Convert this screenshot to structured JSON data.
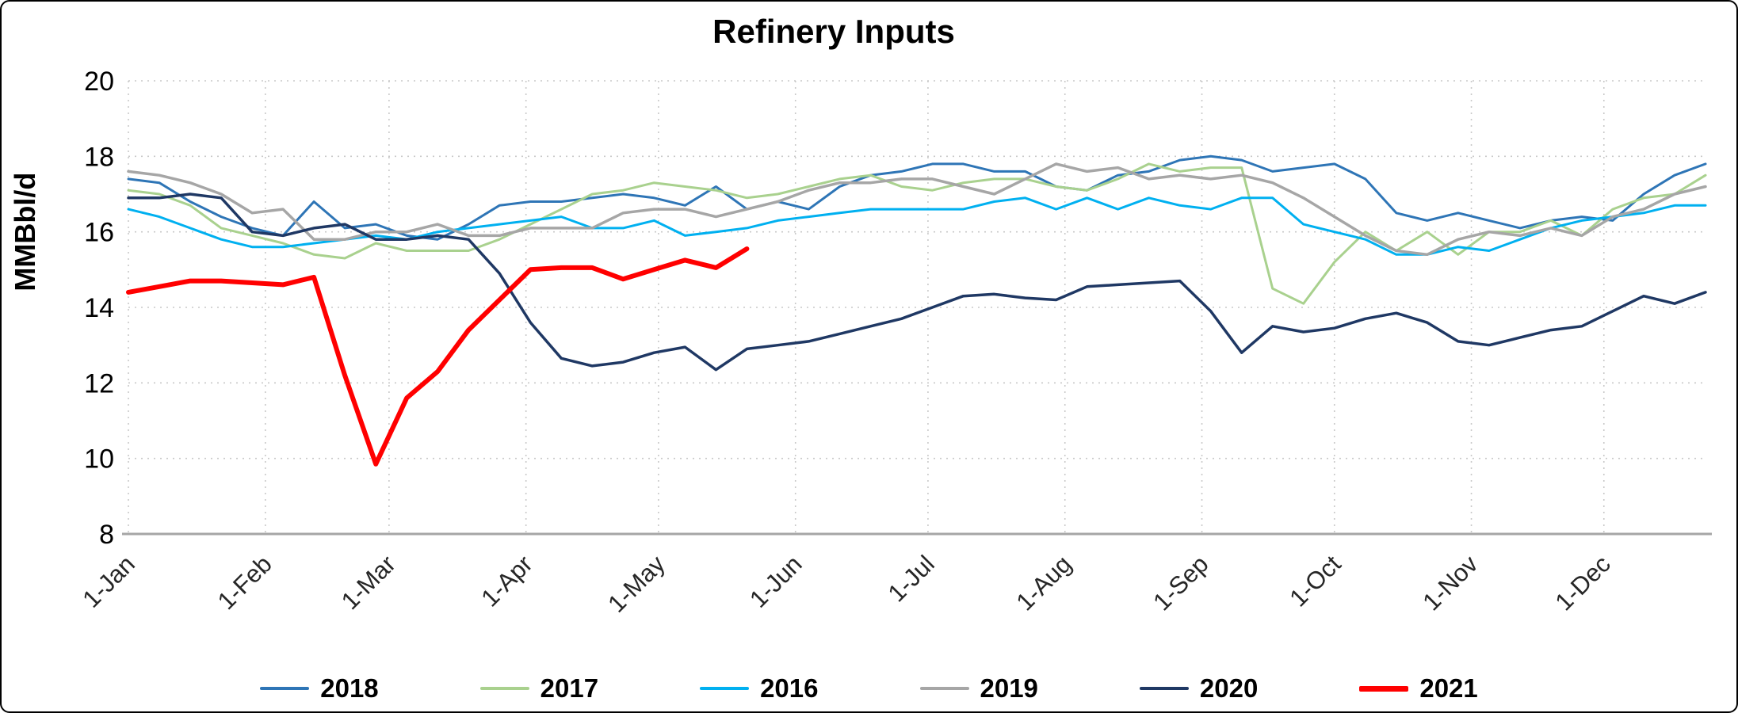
{
  "chart_data": {
    "type": "line",
    "title": "Refinery Inputs",
    "xlabel": "",
    "ylabel": "MMBbl/d",
    "ylim": [
      8,
      20
    ],
    "y_ticks": [
      20,
      18,
      16,
      14,
      12,
      10,
      8
    ],
    "x_tick_labels": [
      "1-Jan",
      "1-Feb",
      "1-Mar",
      "1-Apr",
      "1-May",
      "1-Jun",
      "1-Jul",
      "1-Aug",
      "1-Sep",
      "1-Oct",
      "1-Nov",
      "1-Dec"
    ],
    "x_tick_days": [
      0,
      31,
      59,
      90,
      120,
      151,
      181,
      212,
      243,
      273,
      304,
      334
    ],
    "days_span": 357,
    "grid": "dotted horizontal and vertical gridlines",
    "legend_position": "bottom",
    "axis_color": "#a6a6a6",
    "grid_color": "#c9c9c9",
    "series": [
      {
        "name": "2018",
        "color": "#2E75B6",
        "width": 3,
        "values": [
          17.4,
          17.3,
          16.8,
          16.4,
          16.1,
          15.9,
          16.8,
          16.1,
          16.2,
          15.9,
          15.8,
          16.2,
          16.7,
          16.8,
          16.8,
          16.9,
          17.0,
          16.9,
          16.7,
          17.2,
          16.6,
          16.8,
          16.6,
          17.2,
          17.5,
          17.6,
          17.8,
          17.8,
          17.6,
          17.6,
          17.2,
          17.1,
          17.5,
          17.6,
          17.9,
          18.0,
          17.9,
          17.6,
          17.7,
          17.8,
          17.4,
          16.5,
          16.3,
          16.5,
          16.3,
          16.1,
          16.3,
          16.4,
          16.3,
          17.0,
          17.5,
          17.8
        ]
      },
      {
        "name": "2017",
        "color": "#A9D18E",
        "width": 3,
        "values": [
          17.1,
          17.0,
          16.7,
          16.1,
          15.9,
          15.7,
          15.4,
          15.3,
          15.7,
          15.5,
          15.5,
          15.5,
          15.8,
          16.2,
          16.6,
          17.0,
          17.1,
          17.3,
          17.2,
          17.1,
          16.9,
          17.0,
          17.2,
          17.4,
          17.5,
          17.2,
          17.1,
          17.3,
          17.4,
          17.4,
          17.2,
          17.1,
          17.4,
          17.8,
          17.6,
          17.7,
          17.7,
          14.5,
          14.1,
          15.2,
          16.0,
          15.5,
          16.0,
          15.4,
          16.0,
          16.0,
          16.3,
          15.9,
          16.6,
          16.9,
          17.0,
          17.5
        ]
      },
      {
        "name": "2016",
        "color": "#00B0F0",
        "width": 3,
        "values": [
          16.6,
          16.4,
          16.1,
          15.8,
          15.6,
          15.6,
          15.7,
          15.8,
          15.9,
          15.8,
          16.0,
          16.1,
          16.2,
          16.3,
          16.4,
          16.1,
          16.1,
          16.3,
          15.9,
          16.0,
          16.1,
          16.3,
          16.4,
          16.5,
          16.6,
          16.6,
          16.6,
          16.6,
          16.8,
          16.9,
          16.6,
          16.9,
          16.6,
          16.9,
          16.7,
          16.6,
          16.9,
          16.9,
          16.2,
          16.0,
          15.8,
          15.4,
          15.4,
          15.6,
          15.5,
          15.8,
          16.1,
          16.3,
          16.4,
          16.5,
          16.7,
          16.7
        ]
      },
      {
        "name": "2019",
        "color": "#A6A6A6",
        "width": 3.5,
        "values": [
          17.6,
          17.5,
          17.3,
          17.0,
          16.5,
          16.6,
          15.8,
          15.8,
          16.0,
          16.0,
          16.2,
          15.9,
          15.9,
          16.1,
          16.1,
          16.1,
          16.5,
          16.6,
          16.6,
          16.4,
          16.6,
          16.8,
          17.1,
          17.3,
          17.3,
          17.4,
          17.4,
          17.2,
          17.0,
          17.4,
          17.8,
          17.6,
          17.7,
          17.4,
          17.5,
          17.4,
          17.5,
          17.3,
          16.9,
          16.4,
          15.9,
          15.5,
          15.4,
          15.8,
          16.0,
          15.9,
          16.1,
          15.9,
          16.4,
          16.6,
          17.0,
          17.2
        ]
      },
      {
        "name": "2020",
        "color": "#1F3864",
        "width": 3.5,
        "values": [
          16.9,
          16.9,
          17.0,
          16.9,
          16.0,
          15.9,
          16.1,
          16.2,
          15.8,
          15.8,
          15.9,
          15.8,
          14.9,
          13.6,
          12.65,
          12.45,
          12.55,
          12.8,
          12.95,
          12.35,
          12.9,
          13.0,
          13.1,
          13.3,
          13.5,
          13.7,
          14.0,
          14.3,
          14.35,
          14.25,
          14.2,
          14.55,
          14.6,
          14.65,
          14.7,
          13.9,
          12.8,
          13.5,
          13.35,
          13.45,
          13.7,
          13.85,
          13.6,
          13.1,
          13.0,
          13.2,
          13.4,
          13.5,
          13.9,
          14.3,
          14.1,
          14.4
        ]
      },
      {
        "name": "2021",
        "color": "#FF0000",
        "width": 6,
        "values": [
          14.4,
          14.55,
          14.7,
          14.7,
          14.65,
          14.6,
          14.8,
          12.2,
          9.85,
          11.6,
          12.3,
          13.4,
          14.2,
          15.0,
          15.05,
          15.05,
          14.75,
          15.0,
          15.25,
          15.05,
          15.55
        ]
      }
    ]
  }
}
